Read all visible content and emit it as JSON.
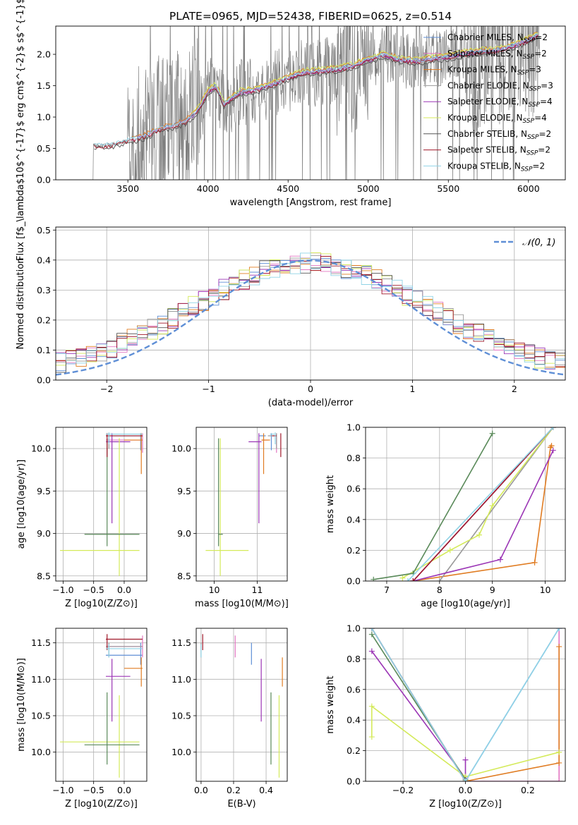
{
  "figure_title": "PLATE=0965, MJD=52438, FIBERID=0625, z=0.514",
  "chart_data": [
    {
      "id": "spectrum",
      "type": "line",
      "title": "PLATE=0965, MJD=52438, FIBERID=0625, z=0.514",
      "xlabel": "wavelength [Angstrom, rest frame]",
      "ylabel": "Flux [f$_\\lambda$10$^{-17}$ erg cm$^{-2}$ s$^{-1}$ A$^{-1}$]",
      "xlim": [
        3050,
        6230
      ],
      "ylim": [
        0,
        2.45
      ],
      "xticks": [
        3500,
        4000,
        4500,
        5000,
        5500,
        6000
      ],
      "yticks": [
        0.0,
        0.5,
        1.0,
        1.5,
        2.0
      ],
      "grid": false,
      "legend_position": "top-right",
      "data_color": "#7f7f7f",
      "models": [
        {
          "name": "Chabrier MILES, N_SSP=2",
          "label": "Chabrier MILES, N",
          "sub": "SSP",
          "eq": "=2",
          "color": "#5f8fd6",
          "range": [
            3525,
            6060
          ],
          "offset": 0.03
        },
        {
          "name": "Salpeter MILES, N_SSP=2",
          "label": "Salpeter MILES, N",
          "sub": "SSP",
          "eq": "=2",
          "color": "#e377c2",
          "range": [
            3525,
            6060
          ],
          "offset": 0.01
        },
        {
          "name": "Kroupa MILES, N_SSP=3",
          "label": "Kroupa MILES, N",
          "sub": "SSP",
          "eq": "=3",
          "color": "#e07c22",
          "range": [
            3525,
            6060
          ],
          "offset": 0.05
        },
        {
          "name": "Chabrier ELODIE, N_SSP=3",
          "label": "Chabrier ELODIE, N",
          "sub": "SSP",
          "eq": "=3",
          "color": "#9a9a9a",
          "range": [
            3900,
            6060
          ],
          "offset": -0.02
        },
        {
          "name": "Salpeter ELODIE, N_SSP=4",
          "label": "Salpeter ELODIE, N",
          "sub": "SSP",
          "eq": "=4",
          "color": "#9b35b5",
          "range": [
            3900,
            6060
          ],
          "offset": 0.0
        },
        {
          "name": "Kroupa ELODIE, N_SSP=4",
          "label": "Kroupa ELODIE, N",
          "sub": "SSP",
          "eq": "=4",
          "color": "#d4ea5a",
          "range": [
            3900,
            6060
          ],
          "offset": 0.06
        },
        {
          "name": "Chabrier STELIB, N_SSP=2",
          "label": "Chabrier STELIB, N",
          "sub": "SSP",
          "eq": "=2",
          "color": "#555555",
          "range": [
            3290,
            6060
          ],
          "offset": -0.04
        },
        {
          "name": "Salpeter STELIB, N_SSP=2",
          "label": "Salpeter STELIB, N",
          "sub": "SSP",
          "eq": "=2",
          "color": "#a0182a",
          "range": [
            3290,
            6060
          ],
          "offset": -0.01
        },
        {
          "name": "Kroupa STELIB, N_SSP=2",
          "label": "Kroupa STELIB, N",
          "sub": "SSP",
          "eq": "=2",
          "color": "#8fd3e6",
          "range": [
            3290,
            6060
          ],
          "offset": 0.02
        }
      ],
      "continuum_knots": [
        [
          3290,
          0.54
        ],
        [
          3400,
          0.55
        ],
        [
          3500,
          0.62
        ],
        [
          3600,
          0.68
        ],
        [
          3700,
          0.8
        ],
        [
          3800,
          0.86
        ],
        [
          3860,
          0.92
        ],
        [
          3920,
          1.05
        ],
        [
          3960,
          1.2
        ],
        [
          4000,
          1.4
        ],
        [
          4050,
          1.48
        ],
        [
          4100,
          1.2
        ],
        [
          4200,
          1.38
        ],
        [
          4300,
          1.42
        ],
        [
          4400,
          1.5
        ],
        [
          4500,
          1.62
        ],
        [
          4600,
          1.7
        ],
        [
          4700,
          1.72
        ],
        [
          4800,
          1.75
        ],
        [
          4900,
          1.8
        ],
        [
          5000,
          1.9
        ],
        [
          5100,
          1.98
        ],
        [
          5200,
          1.9
        ],
        [
          5300,
          1.88
        ],
        [
          5400,
          1.92
        ],
        [
          5500,
          1.95
        ],
        [
          5600,
          2.0
        ],
        [
          5700,
          2.04
        ],
        [
          5800,
          2.05
        ],
        [
          5900,
          2.12
        ],
        [
          6000,
          2.22
        ],
        [
          6060,
          2.3
        ]
      ]
    },
    {
      "id": "residuals",
      "type": "line",
      "xlabel": "(data-model)/error",
      "ylabel": "Normed distribution",
      "xlim": [
        -2.5,
        2.5
      ],
      "ylim": [
        0,
        0.51
      ],
      "xticks": [
        -2,
        -1,
        0,
        1,
        2
      ],
      "yticks": [
        0.0,
        0.1,
        0.2,
        0.3,
        0.4,
        0.5
      ],
      "grid": true,
      "legend_position": "top-right",
      "legend": [
        {
          "name": "N(0,1)",
          "label": "𝒩(0, 1)",
          "color": "#5f8fd6",
          "style": "dashed"
        }
      ],
      "bin_width": 0.1
    },
    {
      "id": "age-vs-Z",
      "type": "scatter",
      "xlabel": "Z [log10(Z/Z⊙)]",
      "ylabel": "age  [log10(age/yr)]",
      "xlim": [
        -1.12,
        0.37
      ],
      "ylim": [
        8.44,
        10.25
      ],
      "xticks": [
        -1.0,
        -0.5,
        0.0
      ],
      "yticks": [
        8.5,
        9.0,
        9.5,
        10.0
      ],
      "grid": true
    },
    {
      "id": "age-vs-mass",
      "type": "scatter",
      "xlabel": "mass [log10(M/M⊙)]",
      "xlim": [
        9.58,
        11.7
      ],
      "ylim": [
        8.44,
        10.25
      ],
      "xticks": [
        10,
        11
      ],
      "yticks": [
        8.5,
        9.0,
        9.5,
        10.0
      ],
      "grid": true
    },
    {
      "id": "cum-mass-vs-age",
      "type": "line",
      "xlabel": "age  [log10(age/yr)]",
      "ylabel": "mass weight",
      "xlim": [
        6.6,
        10.38
      ],
      "ylim": [
        0,
        1
      ],
      "xticks": [
        7,
        8,
        9,
        10
      ],
      "yticks": [
        0.0,
        0.2,
        0.4,
        0.6,
        0.8,
        1.0
      ],
      "grid": true,
      "series": [
        {
          "color": "#5f8fd6",
          "x": [
            7.5,
            10.15
          ],
          "y": [
            0.0,
            1.0
          ]
        },
        {
          "color": "#e377c2",
          "x": [
            7.5,
            10.15
          ],
          "y": [
            0.0,
            1.0
          ]
        },
        {
          "color": "#e07c22",
          "x": [
            7.5,
            9.8,
            10.1,
            10.12
          ],
          "y": [
            0.0,
            0.12,
            0.87,
            0.88
          ]
        },
        {
          "color": "#9a9a9a",
          "x": [
            8.0,
            10.15
          ],
          "y": [
            0.0,
            1.0
          ]
        },
        {
          "color": "#9b35b5",
          "x": [
            7.5,
            9.15,
            10.15
          ],
          "y": [
            0.0,
            0.14,
            0.85
          ]
        },
        {
          "color": "#d4ea5a",
          "x": [
            7.3,
            8.2,
            8.75,
            9.0,
            10.15
          ],
          "y": [
            0.02,
            0.2,
            0.3,
            0.49,
            1.0
          ]
        },
        {
          "color": "#5a8a5a",
          "x": [
            6.75,
            7.5,
            9.0
          ],
          "y": [
            0.01,
            0.05,
            0.96
          ]
        },
        {
          "color": "#a0182a",
          "x": [
            7.5,
            10.15
          ],
          "y": [
            0.0,
            1.0
          ]
        },
        {
          "color": "#8fd3e6",
          "x": [
            7.4,
            10.15
          ],
          "y": [
            0.0,
            1.0
          ]
        }
      ]
    },
    {
      "id": "mass-vs-Z",
      "type": "scatter",
      "xlabel": "Z [log10(Z/Z⊙)]",
      "ylabel": "mass [log10(M/M⊙)]",
      "xlim": [
        -1.12,
        0.37
      ],
      "ylim": [
        9.6,
        11.7
      ],
      "xticks": [
        -1.0,
        -0.5,
        0.0
      ],
      "yticks": [
        10.0,
        10.5,
        11.0,
        11.5
      ],
      "grid": true
    },
    {
      "id": "mass-vs-EBV",
      "type": "scatter",
      "xlabel": "E(B-V)",
      "xlim": [
        -0.03,
        0.53
      ],
      "ylim": [
        9.6,
        11.7
      ],
      "xticks": [
        0.0,
        0.2,
        0.4
      ],
      "yticks": [
        10.0,
        10.5,
        11.0,
        11.5
      ],
      "grid": true
    },
    {
      "id": "cum-mass-vs-Z",
      "type": "line",
      "xlabel": "Z [log10(Z/Z⊙)]",
      "ylabel": "mass weight",
      "xlim": [
        -0.32,
        0.32
      ],
      "ylim": [
        0,
        1
      ],
      "xticks": [
        -0.2,
        0.0,
        0.2
      ],
      "yticks": [
        0.0,
        0.2,
        0.4,
        0.6,
        0.8,
        1.0
      ],
      "grid": true,
      "series": [
        {
          "color": "#5f8fd6",
          "x": [
            -0.3,
            0.0,
            0.3
          ],
          "y": [
            1.0,
            0.0,
            1.0
          ]
        },
        {
          "color": "#e377c2",
          "x": [
            0.0,
            0.3,
            0.3
          ],
          "y": [
            0.0,
            0.0,
            1.0
          ]
        },
        {
          "color": "#e07c22",
          "x": [
            0.0,
            0.3,
            0.3
          ],
          "y": [
            0.0,
            0.12,
            0.88
          ]
        },
        {
          "color": "#9a9a9a",
          "x": [
            -0.3,
            0.0
          ],
          "y": [
            1.0,
            0.0
          ]
        },
        {
          "color": "#9b35b5",
          "x": [
            -0.3,
            0.0,
            0.0
          ],
          "y": [
            0.85,
            0.02,
            0.14
          ]
        },
        {
          "color": "#d4ea5a",
          "x": [
            -0.3,
            -0.3,
            0.0,
            0.3
          ],
          "y": [
            0.29,
            0.49,
            0.03,
            0.19
          ]
        },
        {
          "color": "#5a8a5a",
          "x": [
            -0.3,
            0.0
          ],
          "y": [
            0.96,
            0.01
          ]
        },
        {
          "color": "#a0182a",
          "x": [
            -0.3,
            0.0
          ],
          "y": [
            1.0,
            0.0
          ]
        },
        {
          "color": "#8fd3e6",
          "x": [
            -0.3,
            0.0,
            0.3
          ],
          "y": [
            1.0,
            0.0,
            1.0
          ]
        }
      ]
    }
  ],
  "fits": [
    {
      "color": "#5f8fd6",
      "Z": 0.27,
      "Zlo": -0.3,
      "Zhi": 0.3,
      "age": 10.15,
      "agelo": 9.98,
      "agehi": 10.18,
      "mass": 11.33,
      "masslo": 11.2,
      "masshi": 11.5,
      "mlo": 11.05,
      "mhi": 11.2,
      "ebv": 0.31,
      "ebvlo": 0.0,
      "ebvhi": 0.0
    },
    {
      "color": "#e377c2",
      "Z": 0.3,
      "Zlo": -0.3,
      "Zhi": 0.3,
      "age": 10.1,
      "agelo": 9.95,
      "agehi": 10.18,
      "mass": 11.45,
      "masslo": 11.3,
      "masshi": 11.6,
      "mlo": 11.1,
      "mhi": 11.25,
      "ebv": 0.21,
      "ebvlo": 0.0,
      "ebvhi": 0.0
    },
    {
      "color": "#e07c22",
      "Z": 0.28,
      "Zlo": 0.0,
      "Zhi": 0.3,
      "age": 10.1,
      "agelo": 9.7,
      "agehi": 10.18,
      "mass": 11.15,
      "masslo": 10.9,
      "masshi": 11.3,
      "mlo": 11.1,
      "mhi": 11.3,
      "ebv": 0.5,
      "ebvlo": 0.0,
      "ebvhi": 0.0
    },
    {
      "color": "#9a9a9a",
      "Z": -0.25,
      "Zlo": -0.3,
      "Zhi": 0.3,
      "age": 10.15,
      "agelo": 10.0,
      "agehi": 10.18,
      "mass": 11.45,
      "masslo": 11.3,
      "masshi": 11.5,
      "mlo": 11.25,
      "mhi": 11.4,
      "ebv": 0.0,
      "ebvlo": 0.0,
      "ebvhi": 0.0
    },
    {
      "color": "#9b35b5",
      "Z": -0.2,
      "Zlo": -0.3,
      "Zhi": 0.1,
      "age": 10.08,
      "agelo": 9.12,
      "agehi": 10.18,
      "mass": 11.04,
      "masslo": 10.42,
      "masshi": 11.28,
      "mlo": 10.8,
      "mhi": 11.1,
      "ebv": 0.37,
      "ebvlo": 0.0,
      "ebvhi": 0.0
    },
    {
      "color": "#d4ea5a",
      "Z": -0.08,
      "Zlo": -1.05,
      "Zhi": 0.25,
      "age": 8.8,
      "agelo": 8.5,
      "agehi": 10.12,
      "mass": 10.14,
      "masslo": 9.65,
      "masshi": 10.78,
      "mlo": 9.8,
      "mhi": 10.8,
      "ebv": 0.48,
      "ebvlo": 0.0,
      "ebvhi": 0.0
    },
    {
      "color": "#5a8a5a",
      "Z": -0.28,
      "Zlo": -0.65,
      "Zhi": 0.25,
      "age": 8.99,
      "agelo": 8.85,
      "agehi": 10.12,
      "mass": 10.1,
      "masslo": 9.83,
      "masshi": 10.82,
      "mlo": 10.1,
      "mhi": 10.2,
      "ebv": 0.43,
      "ebvlo": 0.0,
      "ebvhi": 0.0
    },
    {
      "color": "#a0182a",
      "Z": -0.28,
      "Zlo": -0.3,
      "Zhi": 0.3,
      "age": 10.15,
      "agelo": 9.9,
      "agehi": 10.18,
      "mass": 11.55,
      "masslo": 11.4,
      "masshi": 11.62,
      "mlo": 11.35,
      "mhi": 11.45,
      "ebv": 0.01,
      "ebvlo": 0.0,
      "ebvhi": 0.0
    },
    {
      "color": "#8fd3e6",
      "Z": -0.25,
      "Zlo": -0.3,
      "Zhi": 0.3,
      "age": 10.17,
      "agelo": 10.05,
      "agehi": 10.19,
      "mass": 11.42,
      "masslo": 11.3,
      "masshi": 11.48,
      "mlo": 11.3,
      "mhi": 11.4,
      "ebv": 0.0,
      "ebvlo": 0.0,
      "ebvhi": 0.0
    }
  ]
}
